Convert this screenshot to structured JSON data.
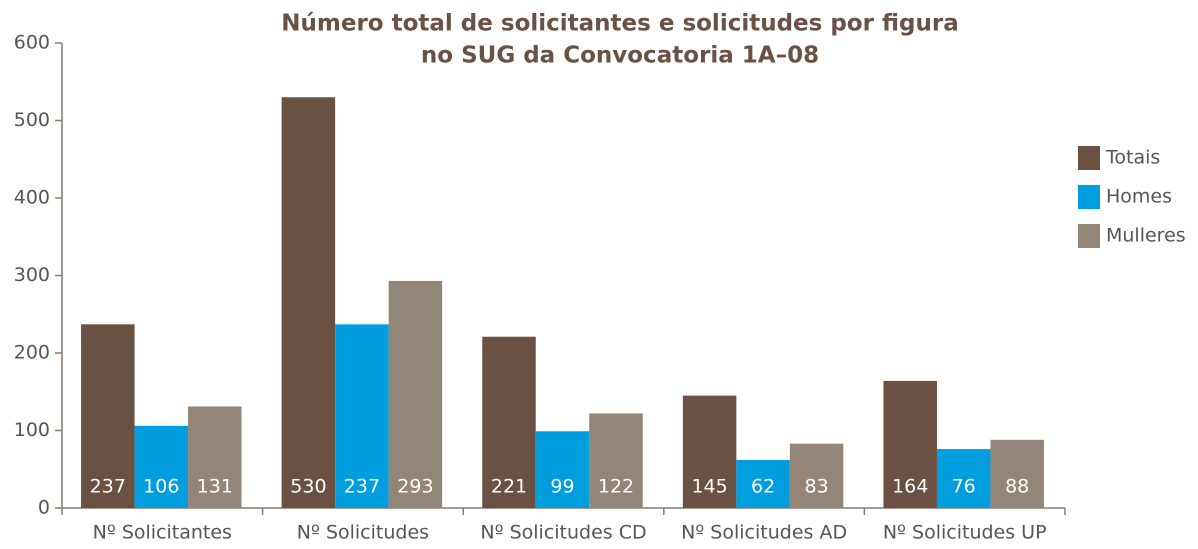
{
  "chart_data": {
    "type": "bar",
    "title": [
      "Número total de solicitantes e solicitudes por figura",
      "no SUG da Convocatoria 1A–08"
    ],
    "categories": [
      "Nº Solicitantes",
      "Nº Solicitudes",
      "Nº Solicitudes CD",
      "Nº Solicitudes AD",
      "Nº Solicitudes UP"
    ],
    "series": [
      {
        "name": "Totais",
        "color": "#6b5142",
        "values": [
          237,
          530,
          221,
          145,
          164
        ]
      },
      {
        "name": "Homes",
        "color": "#009ddf",
        "values": [
          106,
          237,
          99,
          62,
          76
        ]
      },
      {
        "name": "Mulleres",
        "color": "#948579",
        "values": [
          131,
          293,
          122,
          83,
          88
        ]
      }
    ],
    "ylim": [
      0,
      600
    ],
    "yticks": [
      0,
      100,
      200,
      300,
      400,
      500,
      600
    ],
    "grid": false,
    "legend": "right"
  }
}
